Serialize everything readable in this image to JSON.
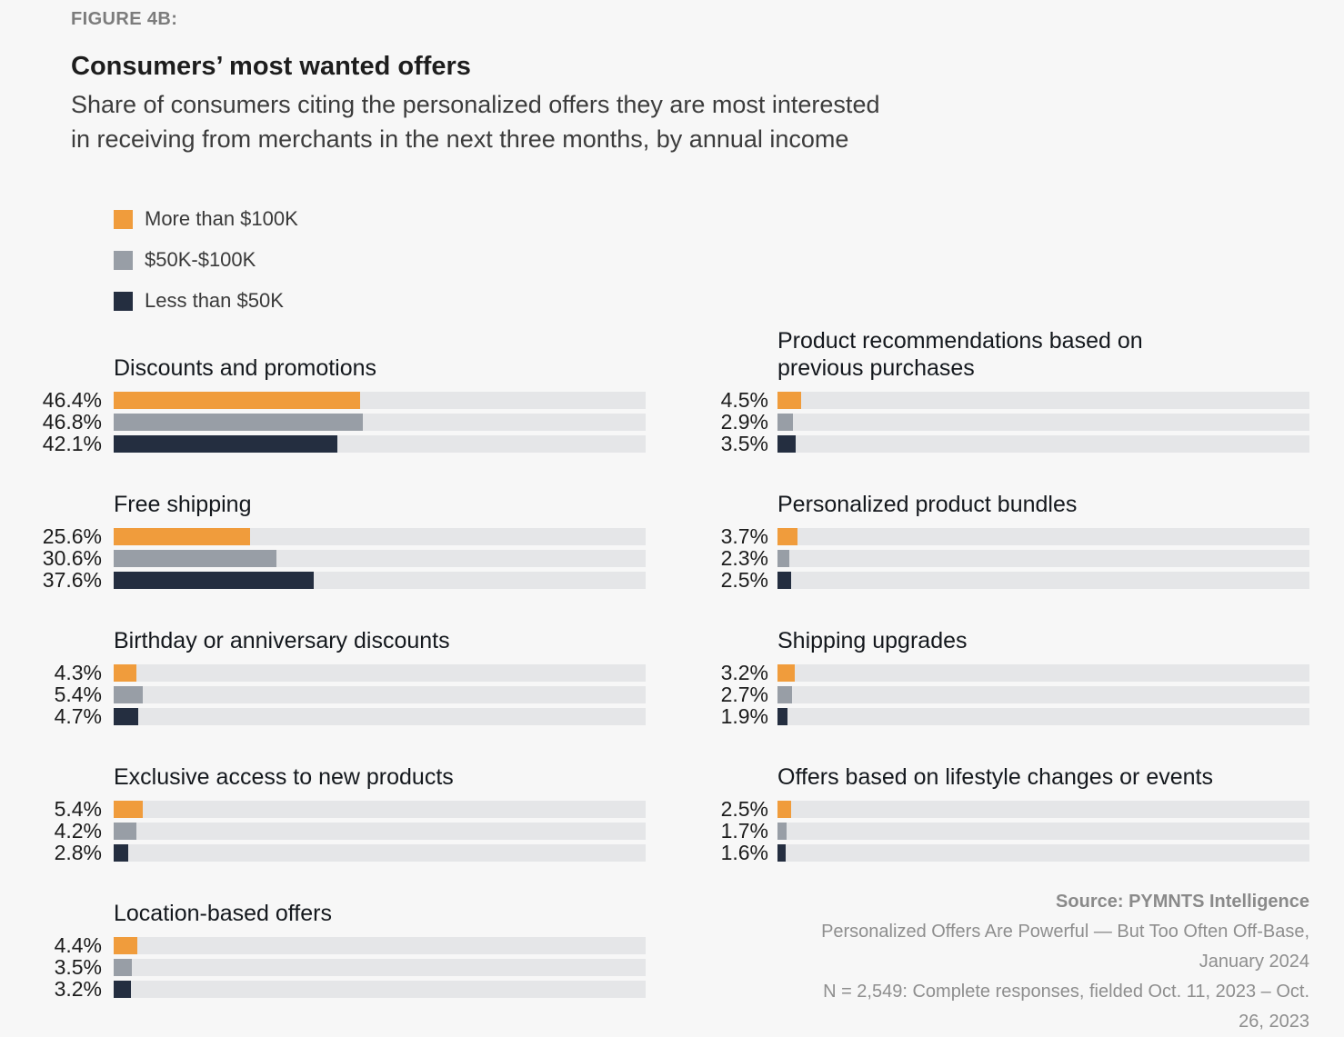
{
  "header": {
    "figure_label": "FIGURE 4B:",
    "title": "Consumers’ most wanted offers",
    "subtitle_lines": [
      "Share of consumers citing the personalized offers they are most interested",
      "in receiving from merchants in the next three months, by annual income"
    ]
  },
  "legend": {
    "items": [
      {
        "label": "More than $100K",
        "color": "#F09C3C"
      },
      {
        "label": "$50K-$100K",
        "color": "#989EA6"
      },
      {
        "label": "Less than $50K",
        "color": "#242E40"
      }
    ]
  },
  "chart_data": {
    "type": "bar",
    "orientation": "horizontal",
    "unit": "%",
    "xlim": [
      0,
      100
    ],
    "grid": false,
    "legend_position": "top-left",
    "track_color": "#E5E6E8",
    "series": [
      {
        "name": "More than $100K",
        "color": "#F09C3C"
      },
      {
        "name": "$50K-$100K",
        "color": "#989EA6"
      },
      {
        "name": "Less than $50K",
        "color": "#242E40"
      }
    ],
    "columns": [
      {
        "groups": [
          {
            "title": "Discounts and promotions",
            "values": [
              46.4,
              46.8,
              42.1
            ]
          },
          {
            "title": "Free shipping",
            "values": [
              25.6,
              30.6,
              37.6
            ]
          },
          {
            "title": "Birthday or anniversary discounts",
            "values": [
              4.3,
              5.4,
              4.7
            ]
          },
          {
            "title": "Exclusive access to new products",
            "values": [
              5.4,
              4.2,
              2.8
            ]
          },
          {
            "title": "Location-based offers",
            "values": [
              4.4,
              3.5,
              3.2
            ]
          }
        ]
      },
      {
        "groups": [
          {
            "title": "Product recommendations based on previous purchases",
            "values": [
              4.5,
              2.9,
              3.5
            ]
          },
          {
            "title": "Personalized product bundles",
            "values": [
              3.7,
              2.3,
              2.5
            ]
          },
          {
            "title": "Shipping upgrades",
            "values": [
              3.2,
              2.7,
              1.9
            ]
          },
          {
            "title": "Offers based on lifestyle changes or events",
            "values": [
              2.5,
              1.7,
              1.6
            ]
          }
        ]
      }
    ]
  },
  "footer": {
    "source_bold": "Source: PYMNTS Intelligence",
    "lines": [
      "Personalized Offers Are Powerful — But Too Often Off-Base,",
      "January 2024",
      "N = 2,549: Complete responses, fielded Oct. 11, 2023 – Oct.",
      "26, 2023"
    ]
  }
}
